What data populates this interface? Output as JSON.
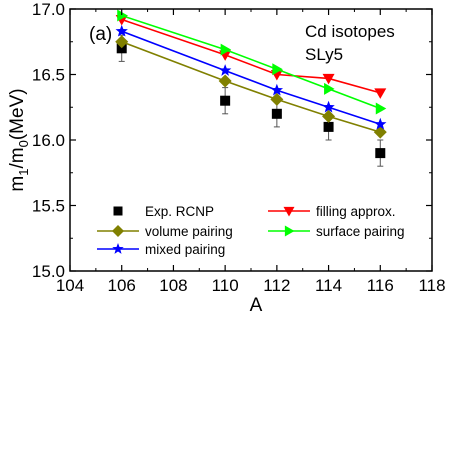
{
  "chart_data": {
    "type": "line",
    "panel_label": "(a)",
    "annotation_lines": [
      "Cd isotopes",
      "SLy5"
    ],
    "xlabel": "A",
    "ylabel": "m1/m0(MeV)",
    "xlim": [
      104,
      118
    ],
    "ylim": [
      15.0,
      17.0
    ],
    "x_ticks": [
      104,
      106,
      108,
      110,
      112,
      114,
      116,
      118
    ],
    "y_ticks": [
      15.0,
      15.5,
      16.0,
      16.5,
      17.0
    ],
    "x_tick_labels": [
      "104",
      "106",
      "108",
      "110",
      "112",
      "114",
      "116",
      "118"
    ],
    "y_tick_labels": [
      "15.0",
      "15.5",
      "16.0",
      "16.5",
      "17.0"
    ],
    "grid": false,
    "legend_placement": "bottom",
    "x": [
      106,
      110,
      112,
      114,
      116
    ],
    "series": [
      {
        "name": "Exp. RCNP",
        "values": [
          16.7,
          16.3,
          16.2,
          16.1,
          15.9
        ],
        "error": [
          0.1,
          0.1,
          0.1,
          0.1,
          0.1
        ],
        "color": "#000000",
        "marker": "square",
        "line": false
      },
      {
        "name": "filling approx.",
        "values": [
          16.92,
          16.65,
          16.5,
          16.47,
          16.36
        ],
        "color": "#ff0000",
        "marker": "triangle-down",
        "line": true
      },
      {
        "name": "volume pairing",
        "values": [
          16.75,
          16.45,
          16.31,
          16.18,
          16.06
        ],
        "color": "#808000",
        "marker": "diamond",
        "line": true
      },
      {
        "name": "surface pairing",
        "values": [
          16.95,
          16.69,
          16.54,
          16.39,
          16.24
        ],
        "color": "#00ff00",
        "marker": "triangle-right",
        "line": true
      },
      {
        "name": "mixed pairing",
        "values": [
          16.83,
          16.53,
          16.38,
          16.25,
          16.12
        ],
        "color": "#0000ff",
        "marker": "star",
        "line": true
      }
    ]
  }
}
